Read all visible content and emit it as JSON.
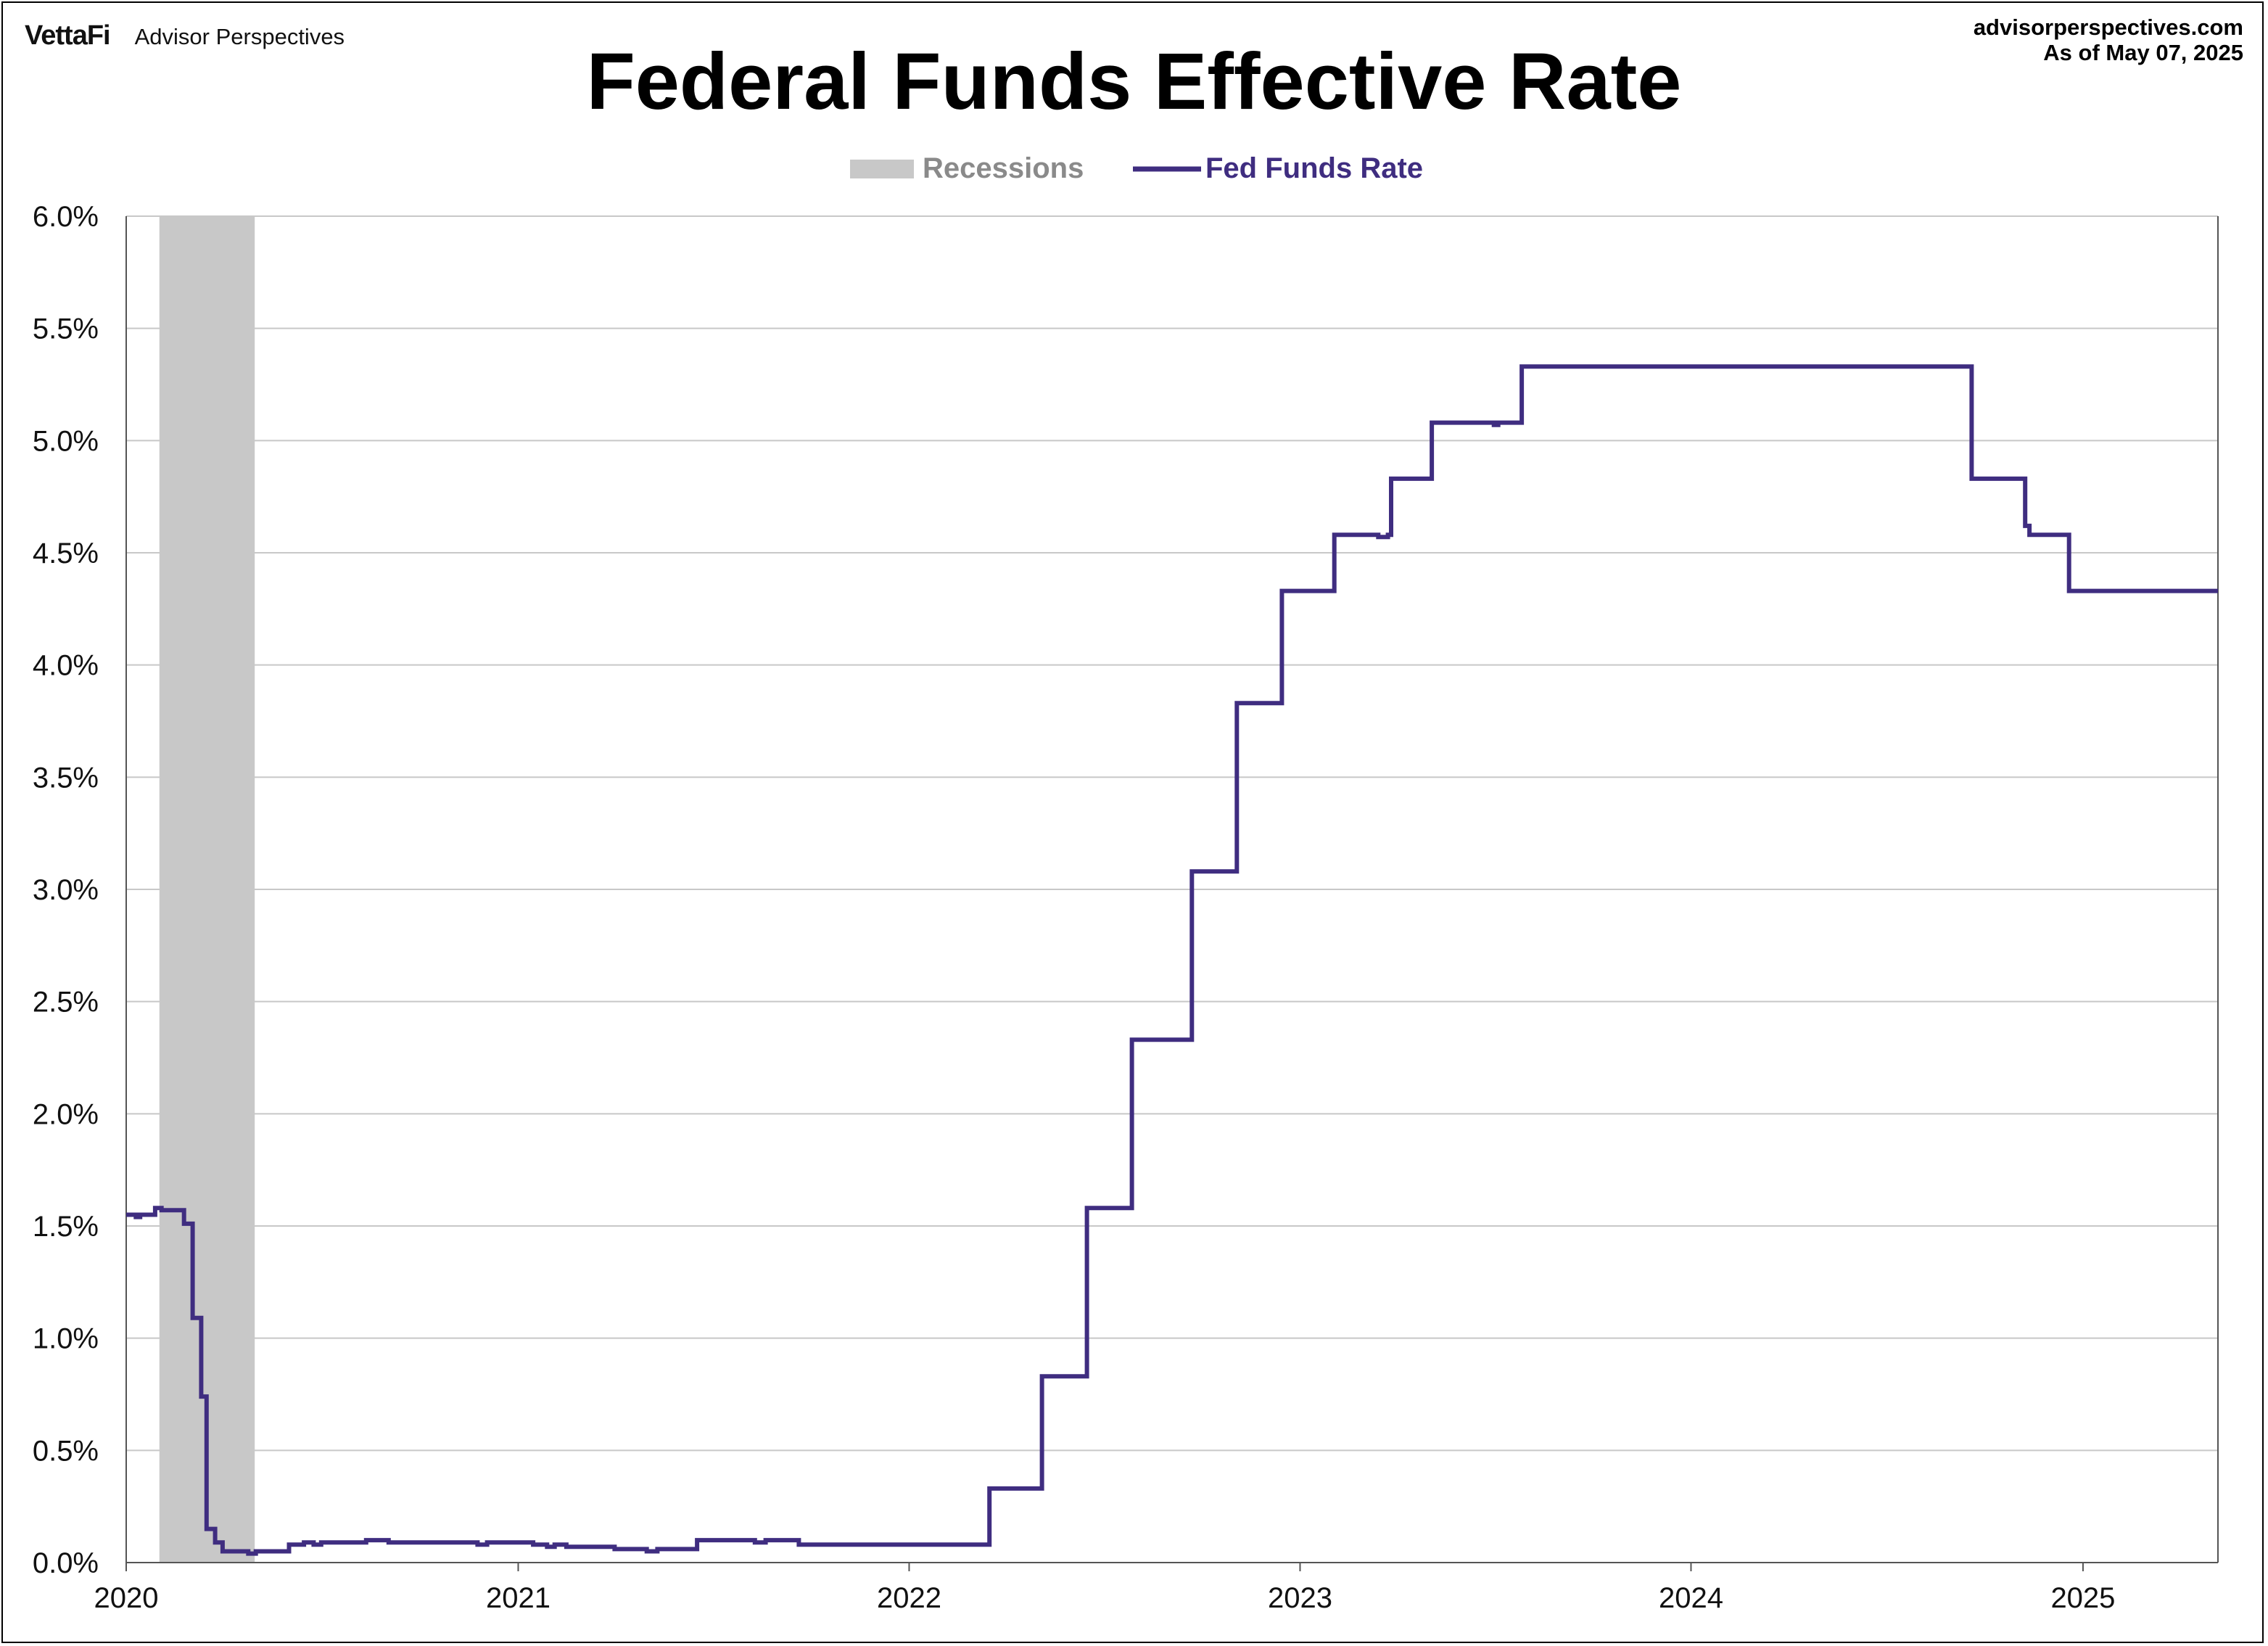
{
  "header": {
    "logo": "VettaFi",
    "brand_name": "Advisor Perspectives",
    "site": "advisorperspectives.com",
    "as_of": "As of May 07, 2025"
  },
  "colors": {
    "series": "#3f2d80",
    "recession": "#c8c8c8",
    "grid": "#c8c8c8",
    "axis": "#555555",
    "legend_recession_text": "#8a8a8a"
  },
  "chart_data": {
    "type": "line",
    "title": "Federal Funds Effective Rate",
    "xlabel": "",
    "ylabel": "",
    "y_axis": {
      "min": 0,
      "max": 6.0,
      "step": 0.5,
      "format": "percent_1dp"
    },
    "x_axis": {
      "min": "2020-01-01",
      "max": "2025-05-07",
      "tick_labels": [
        "2020",
        "2021",
        "2022",
        "2023",
        "2024",
        "2025"
      ]
    },
    "ylim": [
      0,
      6.0
    ],
    "grid": "horizontal",
    "legend": {
      "position": "top-center",
      "entries": [
        {
          "label": "Recessions",
          "kind": "shaded"
        },
        {
          "label": "Fed Funds Rate",
          "kind": "line"
        }
      ]
    },
    "recessions": [
      {
        "start": "2020-02-01",
        "end": "2020-04-30"
      }
    ],
    "series": [
      {
        "name": "Fed Funds Rate",
        "step": true,
        "points": [
          [
            "2020-01-01",
            1.55
          ],
          [
            "2020-01-10",
            1.54
          ],
          [
            "2020-01-14",
            1.55
          ],
          [
            "2020-01-28",
            1.58
          ],
          [
            "2020-02-03",
            1.58
          ],
          [
            "2020-02-03",
            1.57
          ],
          [
            "2020-02-24",
            1.51
          ],
          [
            "2020-03-03",
            1.09
          ],
          [
            "2020-03-11",
            0.74
          ],
          [
            "2020-03-16",
            0.15
          ],
          [
            "2020-03-24",
            0.09
          ],
          [
            "2020-03-31",
            0.05
          ],
          [
            "2020-04-24",
            0.04
          ],
          [
            "2020-05-01",
            0.05
          ],
          [
            "2020-06-01",
            0.08
          ],
          [
            "2020-06-15",
            0.09
          ],
          [
            "2020-06-24",
            0.08
          ],
          [
            "2020-07-01",
            0.09
          ],
          [
            "2020-08-12",
            0.1
          ],
          [
            "2020-09-02",
            0.09
          ],
          [
            "2020-11-24",
            0.08
          ],
          [
            "2020-12-03",
            0.09
          ],
          [
            "2021-01-15",
            0.08
          ],
          [
            "2021-01-28",
            0.07
          ],
          [
            "2021-02-04",
            0.08
          ],
          [
            "2021-02-15",
            0.07
          ],
          [
            "2021-04-01",
            0.06
          ],
          [
            "2021-05-01",
            0.05
          ],
          [
            "2021-05-11",
            0.06
          ],
          [
            "2021-06-17",
            0.1
          ],
          [
            "2021-08-10",
            0.09
          ],
          [
            "2021-08-20",
            0.1
          ],
          [
            "2021-09-20",
            0.08
          ],
          [
            "2022-03-17",
            0.33
          ],
          [
            "2022-05-05",
            0.83
          ],
          [
            "2022-06-16",
            1.58
          ],
          [
            "2022-07-28",
            2.33
          ],
          [
            "2022-09-22",
            3.08
          ],
          [
            "2022-11-03",
            3.83
          ],
          [
            "2022-12-15",
            4.33
          ],
          [
            "2023-02-02",
            4.58
          ],
          [
            "2023-03-15",
            4.57
          ],
          [
            "2023-03-24",
            4.58
          ],
          [
            "2023-03-27",
            4.83
          ],
          [
            "2023-05-04",
            5.08
          ],
          [
            "2023-07-01",
            5.07
          ],
          [
            "2023-07-05",
            5.08
          ],
          [
            "2023-07-27",
            5.33
          ],
          [
            "2024-09-19",
            4.83
          ],
          [
            "2024-11-08",
            4.62
          ],
          [
            "2024-11-12",
            4.58
          ],
          [
            "2024-12-19",
            4.33
          ],
          [
            "2025-05-07",
            4.33
          ]
        ]
      }
    ]
  }
}
